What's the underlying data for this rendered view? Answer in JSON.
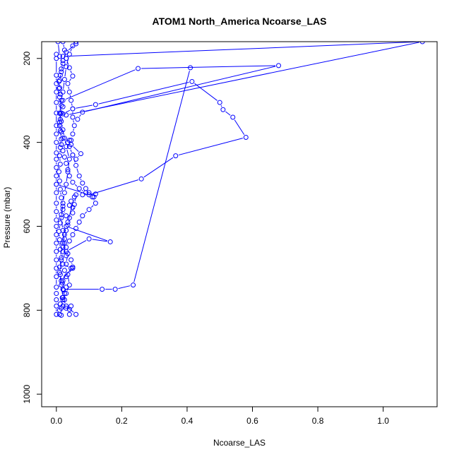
{
  "chart_data": {
    "type": "line",
    "title": "ATOM1 North_America Ncoarse_LAS",
    "xlabel": "Ncoarse_LAS",
    "ylabel": "Pressure (mbar)",
    "xlim": [
      -0.045,
      1.165
    ],
    "ylim": [
      1030,
      160
    ],
    "y_reversed": true,
    "x_ticks": [
      0.0,
      0.2,
      0.4,
      0.6,
      0.8,
      1.0
    ],
    "x_tick_labels": [
      "0.0",
      "0.2",
      "0.4",
      "0.6",
      "0.8",
      "1.0"
    ],
    "y_ticks": [
      200,
      400,
      600,
      800,
      1000
    ],
    "y_tick_labels": [
      "200",
      "400",
      "600",
      "800",
      "1000"
    ],
    "grid": false,
    "line_color": "#0000ff",
    "marker": "open-circle",
    "series": [
      {
        "points": [
          [
            0.01,
            810
          ],
          [
            0.015,
            795
          ],
          [
            0.02,
            775
          ],
          [
            0.025,
            760
          ],
          [
            0.03,
            745
          ],
          [
            0.02,
            730
          ],
          [
            0.03,
            720
          ],
          [
            0.025,
            705
          ],
          [
            0.03,
            690
          ],
          [
            0.035,
            665
          ],
          [
            0.03,
            650
          ],
          [
            0.04,
            635
          ],
          [
            0.05,
            620
          ],
          [
            0.06,
            605
          ],
          [
            0.07,
            590
          ],
          [
            0.08,
            575
          ],
          [
            0.1,
            560
          ],
          [
            0.12,
            545
          ],
          [
            0.11,
            530
          ],
          [
            0.09,
            520
          ],
          [
            0.07,
            510
          ],
          [
            0.05,
            495
          ],
          [
            0.04,
            480
          ],
          [
            0.035,
            465
          ],
          [
            0.03,
            450
          ],
          [
            0.025,
            435
          ],
          [
            0.02,
            420
          ],
          [
            0.015,
            405
          ],
          [
            0.02,
            390
          ],
          [
            0.015,
            375
          ],
          [
            0.01,
            360
          ],
          [
            0.012,
            345
          ],
          [
            0.015,
            330
          ],
          [
            0.02,
            315
          ],
          [
            0.015,
            300
          ],
          [
            0.012,
            285
          ],
          [
            0.01,
            270
          ],
          [
            0.008,
            255
          ],
          [
            0.012,
            240
          ],
          [
            0.015,
            225
          ],
          [
            0.02,
            205
          ],
          [
            0.03,
            185
          ],
          [
            0.06,
            165
          ]
        ]
      },
      {
        "points": [
          [
            0.02,
            750
          ],
          [
            0.14,
            750
          ],
          [
            0.18,
            750
          ],
          [
            0.235,
            740
          ],
          [
            0.41,
            222
          ]
        ]
      },
      {
        "points": [
          [
            0.0,
            500
          ],
          [
            0.1,
            525
          ],
          [
            0.26,
            487
          ],
          [
            0.365,
            432
          ],
          [
            0.58,
            388
          ],
          [
            0.54,
            340
          ],
          [
            0.51,
            322
          ],
          [
            0.5,
            305
          ],
          [
            0.415,
            255
          ],
          [
            0.12,
            310
          ],
          [
            0.05,
            320
          ],
          [
            0.02,
            332
          ]
        ]
      },
      {
        "points": [
          [
            0.02,
            300
          ],
          [
            0.25,
            224
          ],
          [
            0.68,
            217
          ],
          [
            0.08,
            328
          ],
          [
            0.065,
            345
          ]
        ]
      },
      {
        "points": [
          [
            0.03,
            335
          ],
          [
            1.12,
            160
          ],
          [
            0.02,
            195
          ]
        ]
      },
      {
        "points": [
          [
            0.05,
            430
          ],
          [
            0.06,
            440
          ],
          [
            0.075,
            427
          ],
          [
            0.045,
            405
          ],
          [
            0.04,
            395
          ],
          [
            0.035,
            400
          ]
        ]
      },
      {
        "points": [
          [
            0.02,
            560
          ],
          [
            0.03,
            575
          ],
          [
            0.035,
            590
          ],
          [
            0.055,
            530
          ],
          [
            0.045,
            540
          ],
          [
            0.04,
            550
          ],
          [
            0.05,
            555
          ]
        ]
      },
      {
        "points": [
          [
            0.03,
            660
          ],
          [
            0.1,
            630
          ],
          [
            0.165,
            637
          ],
          [
            0.03,
            600
          ],
          [
            0.025,
            620
          ],
          [
            0.02,
            640
          ]
        ]
      },
      {
        "points": [
          [
            0.02,
            690
          ],
          [
            0.045,
            700
          ],
          [
            0.05,
            700
          ],
          [
            0.035,
            715
          ],
          [
            0.04,
            740
          ],
          [
            0.03,
            760
          ],
          [
            0.025,
            775
          ],
          [
            0.02,
            790
          ],
          [
            0.03,
            795
          ],
          [
            0.04,
            798
          ],
          [
            0.045,
            790
          ]
        ]
      },
      {
        "points": [
          [
            0.0,
            810
          ],
          [
            0.0,
            790
          ],
          [
            0.0,
            775
          ],
          [
            0.0,
            760
          ],
          [
            0.0,
            745
          ],
          [
            0.0,
            720
          ],
          [
            0.0,
            700
          ],
          [
            0.0,
            680
          ],
          [
            0.0,
            660
          ],
          [
            0.0,
            640
          ],
          [
            0.0,
            620
          ],
          [
            0.0,
            600
          ],
          [
            0.0,
            585
          ],
          [
            0.0,
            565
          ],
          [
            0.0,
            545
          ],
          [
            0.0,
            520
          ],
          [
            0.0,
            500
          ],
          [
            0.0,
            480
          ],
          [
            0.0,
            460
          ],
          [
            0.0,
            440
          ],
          [
            0.0,
            425
          ],
          [
            0.0,
            400
          ],
          [
            0.0,
            380
          ],
          [
            0.0,
            360
          ],
          [
            0.0,
            330
          ],
          [
            0.0,
            305
          ],
          [
            0.0,
            280
          ],
          [
            0.0,
            260
          ],
          [
            0.0,
            240
          ],
          [
            0.0,
            200
          ],
          [
            0.0,
            190
          ]
        ]
      },
      {
        "points": [
          [
            0.04,
            810
          ],
          [
            0.06,
            810
          ],
          [
            0.03,
            790
          ],
          [
            0.02,
            770
          ],
          [
            0.015,
            740
          ],
          [
            0.01,
            710
          ],
          [
            0.015,
            680
          ],
          [
            0.02,
            660
          ],
          [
            0.025,
            640
          ],
          [
            0.02,
            610
          ],
          [
            0.015,
            580
          ],
          [
            0.02,
            545
          ],
          [
            0.025,
            520
          ],
          [
            0.03,
            500
          ],
          [
            0.035,
            470
          ],
          [
            0.04,
            440
          ],
          [
            0.03,
            410
          ],
          [
            0.025,
            390
          ],
          [
            0.02,
            370
          ],
          [
            0.015,
            350
          ],
          [
            0.01,
            330
          ],
          [
            0.015,
            300
          ],
          [
            0.02,
            280
          ],
          [
            0.025,
            250
          ],
          [
            0.03,
            220
          ],
          [
            0.04,
            190
          ],
          [
            0.05,
            170
          ],
          [
            0.06,
            160
          ]
        ]
      },
      {
        "points": [
          [
            0.015,
            812
          ],
          [
            0.01,
            800
          ],
          [
            0.012,
            785
          ],
          [
            0.018,
            770
          ],
          [
            0.022,
            752
          ],
          [
            0.018,
            735
          ],
          [
            0.012,
            715
          ],
          [
            0.01,
            697
          ],
          [
            0.015,
            675
          ],
          [
            0.012,
            655
          ],
          [
            0.01,
            632
          ],
          [
            0.008,
            612
          ],
          [
            0.012,
            592
          ],
          [
            0.015,
            572
          ],
          [
            0.02,
            552
          ],
          [
            0.015,
            532
          ],
          [
            0.012,
            512
          ],
          [
            0.01,
            492
          ],
          [
            0.008,
            470
          ],
          [
            0.012,
            452
          ],
          [
            0.01,
            432
          ],
          [
            0.012,
            412
          ],
          [
            0.015,
            392
          ],
          [
            0.012,
            372
          ],
          [
            0.01,
            352
          ],
          [
            0.012,
            332
          ],
          [
            0.015,
            312
          ],
          [
            0.01,
            292
          ],
          [
            0.008,
            272
          ],
          [
            0.01,
            252
          ],
          [
            0.015,
            232
          ],
          [
            0.02,
            212
          ],
          [
            0.01,
            195
          ],
          [
            0.005,
            160
          ]
        ]
      },
      {
        "points": [
          [
            0.015,
            730
          ],
          [
            0.05,
            697
          ],
          [
            0.045,
            680
          ],
          [
            0.03,
            670
          ],
          [
            0.02,
            650
          ],
          [
            0.025,
            630
          ],
          [
            0.03,
            610
          ],
          [
            0.035,
            597
          ],
          [
            0.04,
            580
          ],
          [
            0.05,
            568
          ],
          [
            0.055,
            548
          ],
          [
            0.06,
            525
          ],
          [
            0.08,
            525
          ],
          [
            0.12,
            523
          ],
          [
            0.115,
            530
          ],
          [
            0.1,
            520
          ],
          [
            0.09,
            510
          ],
          [
            0.08,
            497
          ],
          [
            0.07,
            480
          ],
          [
            0.06,
            455
          ],
          [
            0.05,
            430
          ],
          [
            0.04,
            410
          ],
          [
            0.045,
            395
          ],
          [
            0.05,
            380
          ],
          [
            0.055,
            360
          ],
          [
            0.05,
            340
          ],
          [
            0.05,
            320
          ],
          [
            0.045,
            300
          ],
          [
            0.04,
            280
          ],
          [
            0.035,
            260
          ],
          [
            0.05,
            242
          ],
          [
            0.04,
            222
          ],
          [
            0.03,
            200
          ],
          [
            0.025,
            180
          ],
          [
            0.02,
            160
          ]
        ]
      }
    ]
  }
}
